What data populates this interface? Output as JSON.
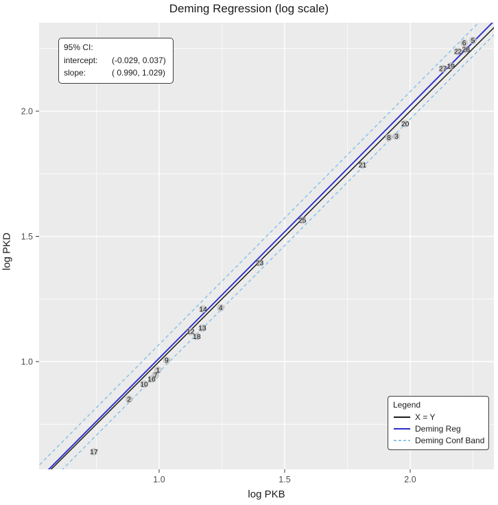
{
  "title": "Deming Regression (log scale)",
  "annotation": {
    "title": "95% CI:",
    "rows": [
      {
        "label": "intercept:",
        "value": "(-0.029, 0.037)"
      },
      {
        "label": "slope:",
        "value": "( 0.990, 1.029)"
      }
    ]
  },
  "legend": {
    "title": "Legend",
    "items": [
      {
        "label": "X = Y",
        "color": "#1a1a1a",
        "dasharray": "0"
      },
      {
        "label": "Deming Reg",
        "color": "#2b2bcb",
        "dasharray": "0"
      },
      {
        "label": "Deming Conf Band",
        "color": "#8bc5e6",
        "dasharray": "4 3"
      }
    ]
  },
  "chart_data": {
    "type": "scatter",
    "title": "Deming Regression (log scale)",
    "xlabel": "log PKB",
    "ylabel": "log PKD",
    "xlim": [
      0.52,
      2.33
    ],
    "ylim": [
      0.57,
      2.353
    ],
    "x_ticks": [
      1.0,
      1.5,
      2.0
    ],
    "y_ticks": [
      1.0,
      1.5,
      2.0
    ],
    "x_tick_labels": [
      "1.0",
      "1.5",
      "2.0"
    ],
    "y_tick_labels": [
      "2.0",
      "1.5",
      "1.0"
    ],
    "x_minor": [
      0.75,
      1.25,
      1.75,
      2.25
    ],
    "y_minor": [
      0.75,
      1.25,
      1.75,
      2.25
    ],
    "grid": "white major+minor gridlines on gray panel",
    "legend_position": "bottom-right inset box",
    "panel_color": "#ebebeb",
    "point_color": "#bfbfbf",
    "label_color": "#141414",
    "ci": {
      "intercept": [
        -0.029,
        0.037
      ],
      "slope": [
        0.99,
        1.029
      ]
    },
    "lines": [
      {
        "name": "X = Y",
        "slope": 1.0,
        "intercept": 0.0,
        "color": "#1a1a1a",
        "width": 1.5,
        "dash": ""
      },
      {
        "name": "Deming Reg",
        "slope": 1.0095,
        "intercept": 0.004,
        "color": "#2b2bcb",
        "width": 1.9,
        "dash": ""
      },
      {
        "name": "Deming Conf Band upper",
        "slope": 1.0095,
        "intercept": 0.059,
        "color": "#8bc5e6",
        "width": 1.6,
        "dash": "5 4"
      },
      {
        "name": "Deming Conf Band lower",
        "slope": 1.0095,
        "intercept": -0.051,
        "color": "#8bc5e6",
        "width": 1.6,
        "dash": "5 4"
      }
    ],
    "points": [
      {
        "label": "17",
        "x": 0.74,
        "y": 0.64
      },
      {
        "label": "2",
        "x": 0.88,
        "y": 0.85
      },
      {
        "label": "10",
        "x": 0.94,
        "y": 0.91
      },
      {
        "label": "16",
        "x": 0.97,
        "y": 0.93
      },
      {
        "label": "7",
        "x": 0.985,
        "y": 0.945
      },
      {
        "label": "1",
        "x": 0.995,
        "y": 0.966
      },
      {
        "label": "9",
        "x": 1.03,
        "y": 1.005
      },
      {
        "label": "12",
        "x": 1.125,
        "y": 1.12
      },
      {
        "label": "18",
        "x": 1.15,
        "y": 1.1
      },
      {
        "label": "13",
        "x": 1.172,
        "y": 1.134
      },
      {
        "label": "14",
        "x": 1.175,
        "y": 1.21
      },
      {
        "label": "4",
        "x": 1.245,
        "y": 1.215
      },
      {
        "label": "23",
        "x": 1.4,
        "y": 1.395
      },
      {
        "label": "25",
        "x": 1.57,
        "y": 1.565
      },
      {
        "label": "21",
        "x": 1.81,
        "y": 1.785
      },
      {
        "label": "8",
        "x": 1.915,
        "y": 1.895
      },
      {
        "label": "3",
        "x": 1.945,
        "y": 1.9
      },
      {
        "label": "20",
        "x": 1.98,
        "y": 1.95
      },
      {
        "label": "27",
        "x": 2.13,
        "y": 2.17
      },
      {
        "label": "19",
        "x": 2.162,
        "y": 2.18
      },
      {
        "label": "22",
        "x": 2.19,
        "y": 2.238
      },
      {
        "label": "28",
        "x": 2.222,
        "y": 2.246
      },
      {
        "label": "6",
        "x": 2.215,
        "y": 2.272
      },
      {
        "label": "5",
        "x": 2.25,
        "y": 2.282
      }
    ]
  }
}
